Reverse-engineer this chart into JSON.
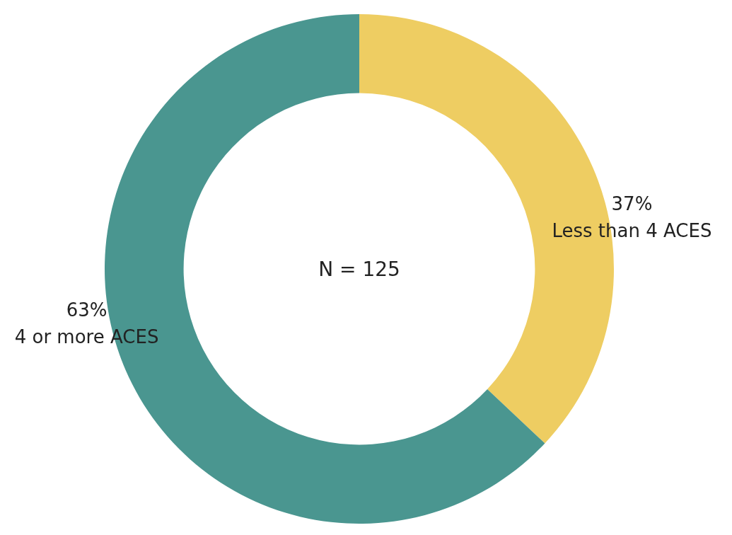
{
  "chart_data": {
    "type": "donut",
    "categories": [
      "Less than 4 ACES",
      "4 or more ACES"
    ],
    "values": [
      37,
      63
    ],
    "colors": [
      "#eecd62",
      "#4a9690"
    ],
    "value_labels": [
      "37%",
      "63%"
    ],
    "annotations": [
      "N = 125"
    ]
  }
}
